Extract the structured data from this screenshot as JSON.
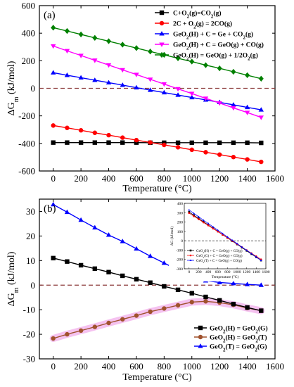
{
  "chart_data": [
    {
      "panel": "(a)",
      "type": "line",
      "xlabel": "Temperature (°C)",
      "ylabel": "ΔGm (kJ/mol)",
      "xlim": [
        -100,
        1600
      ],
      "ylim": [
        -600,
        600
      ],
      "xticks": [
        "0",
        "200",
        "400",
        "600",
        "800",
        "1000",
        "1200",
        "1400",
        "1600"
      ],
      "yticks": [
        "-600",
        "-400",
        "-200",
        "0",
        "200",
        "400",
        "600"
      ],
      "x": [
        0,
        100,
        200,
        300,
        400,
        500,
        600,
        700,
        800,
        900,
        1000,
        1100,
        1200,
        1300,
        1400,
        1500
      ],
      "reference_line": {
        "y": 0,
        "style": "dashed",
        "color": "#8B3A3A"
      },
      "legend_position": "top-right",
      "series": [
        {
          "name": "C+O2(g)=CO2(g)",
          "color": "#000000",
          "marker": "square",
          "values": [
            -394,
            -394,
            -394,
            -394,
            -394,
            -394,
            -394,
            -395,
            -395,
            -395,
            -395,
            -395,
            -395,
            -395,
            -395,
            -396
          ]
        },
        {
          "name": "2C + O2(g) = 2CO(g)",
          "color": "#ff0000",
          "marker": "circle",
          "values": [
            -270,
            -287,
            -305,
            -323,
            -340,
            -358,
            -376,
            -393,
            -411,
            -428,
            -446,
            -464,
            -481,
            -499,
            -516,
            -534
          ]
        },
        {
          "name": "GeO2(H) + C = Ge + CO2(g)",
          "color": "#0000ff",
          "marker": "triangle-up",
          "values": [
            113,
            95,
            77,
            59,
            41,
            23,
            5,
            -13,
            -31,
            -49,
            -67,
            -84,
            -102,
            -120,
            -138,
            -156
          ]
        },
        {
          "name": "GeO2(H) + C = GeO(g) + CO(g)",
          "color": "#ff00ff",
          "marker": "triangle-down",
          "values": [
            307,
            272,
            238,
            203,
            169,
            134,
            100,
            65,
            31,
            -4,
            -38,
            -73,
            -107,
            -142,
            -176,
            -211
          ]
        },
        {
          "name": "GeO2(H) = GeO(g) + 1/2O2(g)",
          "color": "#008000",
          "marker": "diamond",
          "values": [
            440,
            416,
            391,
            366,
            342,
            317,
            292,
            267,
            243,
            218,
            194,
            168,
            145,
            120,
            95,
            70
          ]
        }
      ]
    },
    {
      "panel": "(b)",
      "type": "line",
      "xlabel": "Temperature (°C)",
      "ylabel": "ΔGm (kJ/mol)",
      "xlim": [
        -100,
        1600
      ],
      "ylim": [
        -30,
        35
      ],
      "xticks": [
        "0",
        "200",
        "400",
        "600",
        "800",
        "1000",
        "1200",
        "1400",
        "1600"
      ],
      "yticks": [
        "-30",
        "-20",
        "-10",
        "0",
        "10",
        "20",
        "30"
      ],
      "x": [
        0,
        100,
        200,
        300,
        400,
        500,
        600,
        700,
        800,
        900,
        1000,
        1100,
        1200,
        1300,
        1400,
        1500
      ],
      "reference_line": {
        "y": 0,
        "style": "dashed",
        "color": "#8B3A3A"
      },
      "legend_position": "bottom-right",
      "series": [
        {
          "name": "GeO2(H) = GeO2(G)",
          "color": "#000000",
          "marker": "square",
          "values": [
            11,
            9.6,
            8.1,
            6.7,
            5.3,
            3.8,
            2.4,
            1.0,
            -0.5,
            -1.9,
            -3.3,
            -4.8,
            -6.2,
            -7.7,
            -9.1,
            -10.4
          ]
        },
        {
          "name": "GeO2(H) = GeO2(T)",
          "color": "#a0522d",
          "marker": "circle",
          "values": [
            -21.7,
            -20.0,
            -18.5,
            -17.0,
            -15.4,
            -13.9,
            -12.4,
            -10.8,
            -9.5,
            -8.2,
            -6.9,
            -6.6,
            -7.1,
            -8.0,
            -9.3,
            -10.4
          ]
        },
        {
          "name": "GeO2(T) = GeO2(G)",
          "color": "#0000ff",
          "marker": "triangle-up",
          "values": [
            32.8,
            29.7,
            26.5,
            23.4,
            20.4,
            17.8,
            14.8,
            11.8,
            9.0,
            6.1,
            3.4,
            1.8,
            1.1,
            0.7,
            0.3,
            0.0
          ]
        }
      ],
      "inset": {
        "xlabel": "Temperature (°C)",
        "ylabel": "ΔG (kJ/mol)",
        "xlim": [
          -100,
          1600
        ],
        "ylim": [
          -300,
          400
        ],
        "xticks": [
          "0",
          "200",
          "400",
          "600",
          "800",
          "1000",
          "1200",
          "1400",
          "1600"
        ],
        "yticks": [
          "-300",
          "-200",
          "-100",
          "0",
          "100",
          "200",
          "300",
          "400"
        ],
        "series": [
          {
            "name": "GeO2(H) + C = GeO(g) + CO(g)",
            "color": "#000000",
            "marker": "square",
            "values": [
              307,
              272,
              238,
              203,
              169,
              134,
              100,
              65,
              31,
              -4,
              -38,
              -73,
              -107,
              -142,
              -176,
              -211
            ]
          },
          {
            "name": "GeO2(G) + C = GeO(g) + CO(g)",
            "color": "#ff0000",
            "marker": "circle",
            "values": [
              296,
              262,
              230,
              196,
              164,
              130,
              98,
              64,
              32,
              -2,
              -35,
              -68,
              -101,
              -134,
              -167,
              -200
            ]
          },
          {
            "name": "GeO2(T) + C = GeO(g) + CO(g)",
            "color": "#0000ff",
            "marker": "triangle-up",
            "values": [
              329,
              292,
              256,
              219,
              184,
              148,
              112,
              76,
              40,
              4,
              -31,
              -67,
              -102,
              -138,
              -173,
              -210
            ]
          }
        ]
      }
    }
  ]
}
